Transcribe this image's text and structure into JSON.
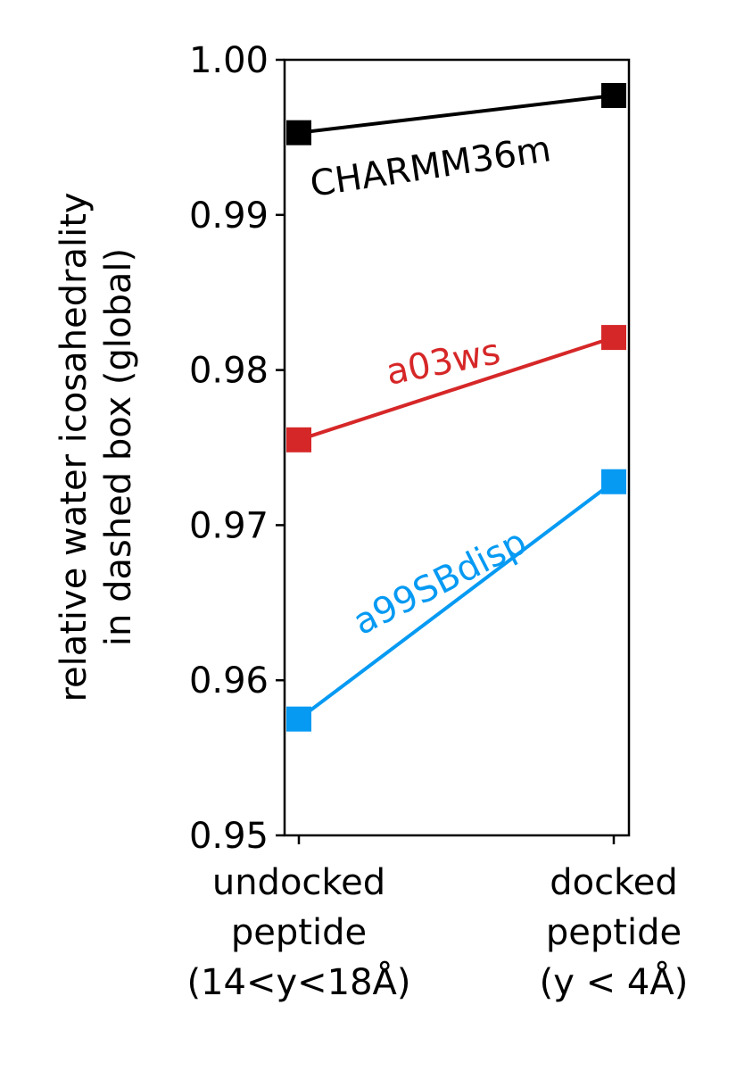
{
  "chart_data": {
    "type": "line",
    "categories": [
      [
        "undocked",
        "peptide",
        "(14<y<18Å)"
      ],
      [
        "docked",
        "peptide",
        "(y < 4Å)"
      ]
    ],
    "ylabel": [
      "relative water icosahedrality",
      "in dashed box (global)"
    ],
    "ylim": [
      0.95,
      1.0
    ],
    "yticks": [
      "0.95",
      "0.96",
      "0.97",
      "0.98",
      "0.99",
      "1.00"
    ],
    "ytick_values": [
      0.95,
      0.96,
      0.97,
      0.98,
      0.99,
      1.0
    ],
    "grid": false,
    "legend": "inline labels",
    "marker": "square",
    "series": [
      {
        "name": "CHARMM36m",
        "values": [
          0.9953,
          0.9977
        ],
        "color": "#000000"
      },
      {
        "name": "a03ws",
        "values": [
          0.9755,
          0.9821
        ],
        "color": "#d62728"
      },
      {
        "name": "a99SBdisp",
        "values": [
          0.9575,
          0.9728
        ],
        "color": "#069af3"
      }
    ]
  }
}
